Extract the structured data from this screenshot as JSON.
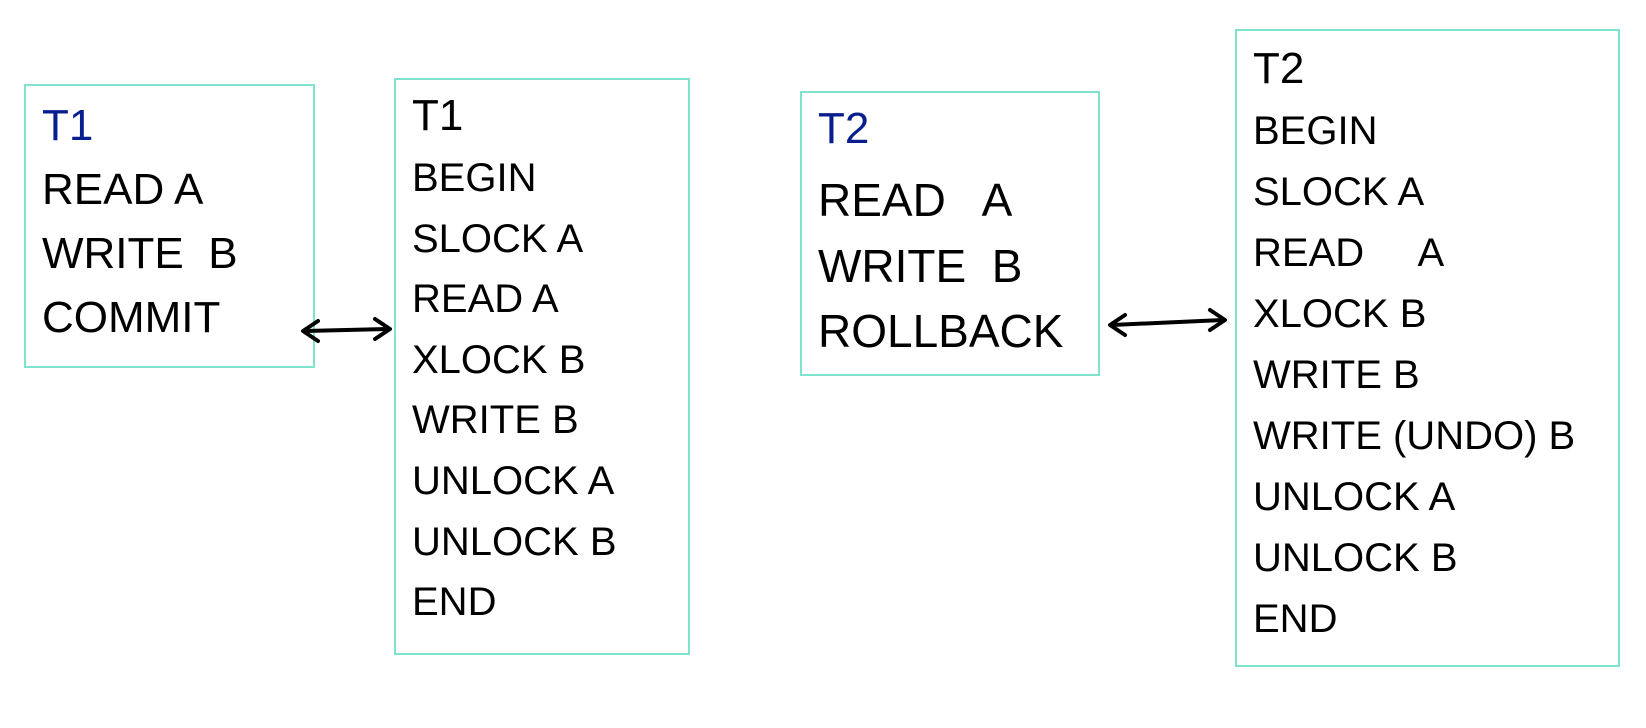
{
  "diagram": {
    "t1_summary": {
      "title": "T1",
      "lines": [
        "READ A",
        "WRITE  B",
        "COMMIT"
      ]
    },
    "t1_detail": {
      "title": "T1",
      "lines": [
        "BEGIN",
        "SLOCK A",
        "READ A",
        "XLOCK B",
        "WRITE B",
        "UNLOCK A",
        "UNLOCK B",
        "END"
      ]
    },
    "t2_summary": {
      "title": "T2",
      "lines": [
        "READ   A",
        "WRITE  B",
        "ROLLBACK"
      ]
    },
    "t2_detail": {
      "title": "T2",
      "lines": [
        "BEGIN",
        "SLOCK A",
        "READ     A",
        "XLOCK B",
        "WRITE B",
        "WRITE (UNDO) B",
        "UNLOCK A",
        "UNLOCK B",
        "END"
      ]
    },
    "colors": {
      "box_border": "#7fe3cf",
      "summary_title": "#0a1f8f",
      "text": "#000000",
      "arrow": "#000000"
    },
    "arrow_icons": [
      "double-arrow-icon",
      "double-arrow-icon"
    ]
  }
}
